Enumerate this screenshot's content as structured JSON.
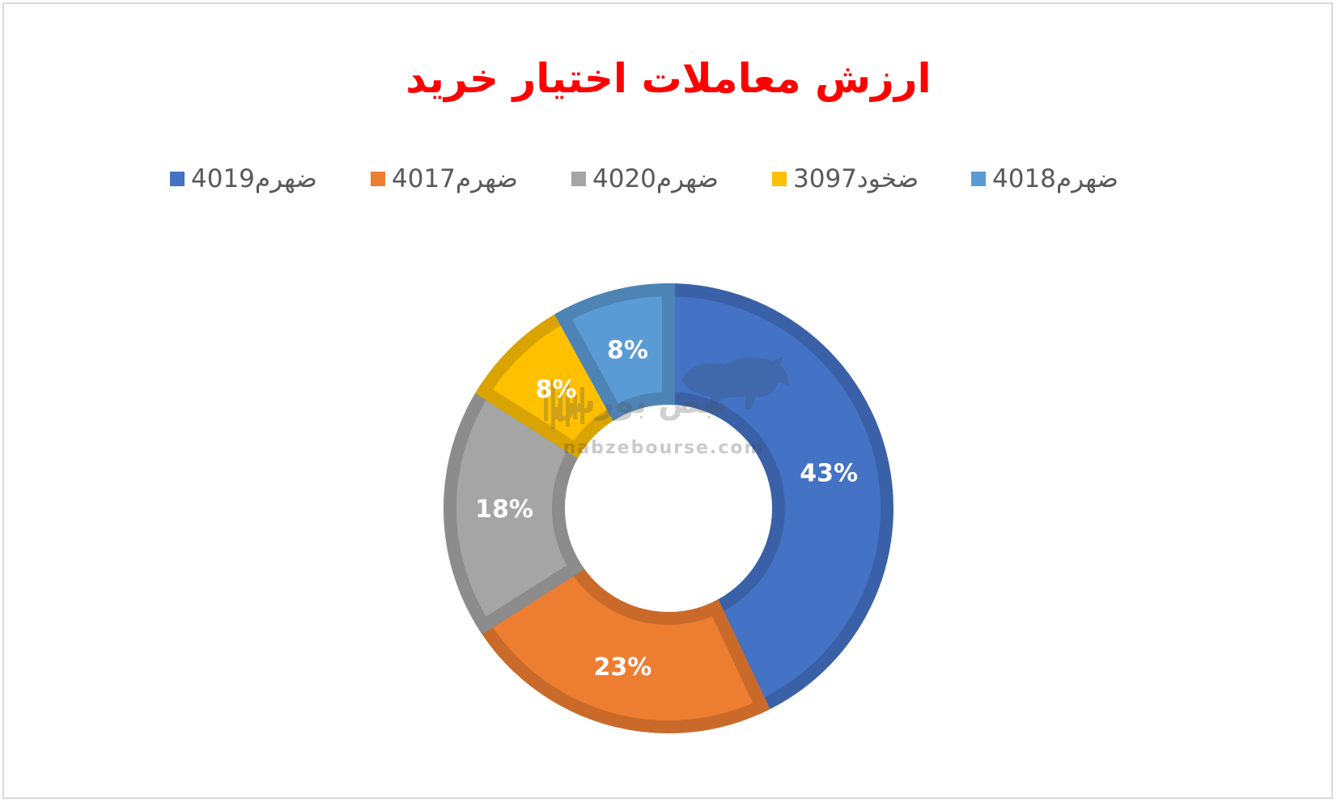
{
  "chart_data": {
    "type": "doughnut",
    "title": "ارزش معاملات اختیار خرید",
    "legend_position": "top",
    "slices": [
      {
        "name": "ضهرم4019",
        "value": 43,
        "label": "43%",
        "color": "#4472c4"
      },
      {
        "name": "ضهرم4017",
        "value": 23,
        "label": "23%",
        "color": "#ed7d31"
      },
      {
        "name": "ضهرم4020",
        "value": 18,
        "label": "18%",
        "color": "#a5a5a5"
      },
      {
        "name": "ضخود3097",
        "value": 8,
        "label": "8%",
        "color": "#ffc000"
      },
      {
        "name": "ضهرم4018",
        "value": 8,
        "label": "8%",
        "color": "#5b9bd5"
      }
    ]
  },
  "watermark": {
    "text": "nabzebourse.com",
    "logo_text": "نبض بورس"
  }
}
